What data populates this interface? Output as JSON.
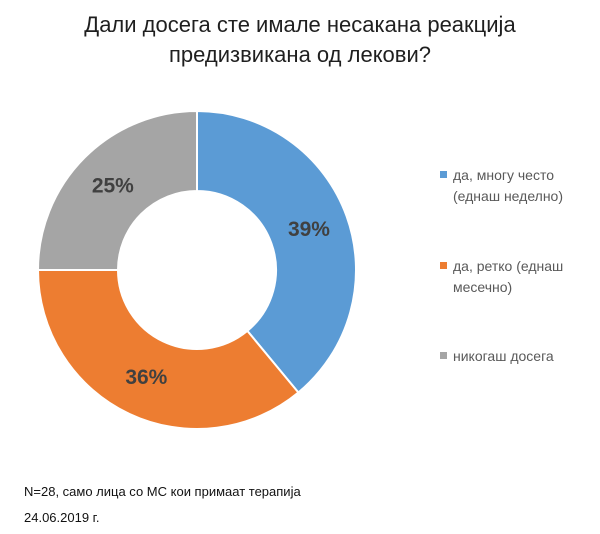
{
  "chart_data": {
    "type": "pie",
    "subtype": "donut",
    "title_lines": [
      "Дали досега сте имале несакана реакција",
      "предизвикана од лекови?"
    ],
    "series": [
      {
        "name": "да, многу често (еднаш неделно)",
        "legend_lines": [
          "да, многу често",
          "(еднаш неделно)"
        ],
        "value": 39,
        "label": "39%",
        "color": "#5b9bd5"
      },
      {
        "name": "да, ретко (еднаш месечно)",
        "legend_lines": [
          "да, ретко (еднаш",
          "месечно)"
        ],
        "value": 36,
        "label": "36%",
        "color": "#ed7d31"
      },
      {
        "name": "никогаш досега",
        "legend_lines": [
          "никогаш досега"
        ],
        "value": 25,
        "label": "25%",
        "color": "#a5a5a5"
      }
    ],
    "legend_position": "right"
  },
  "footer": {
    "note": "N=28, само лица со МС кои примаат терапија",
    "date": "24.06.2019 г."
  }
}
